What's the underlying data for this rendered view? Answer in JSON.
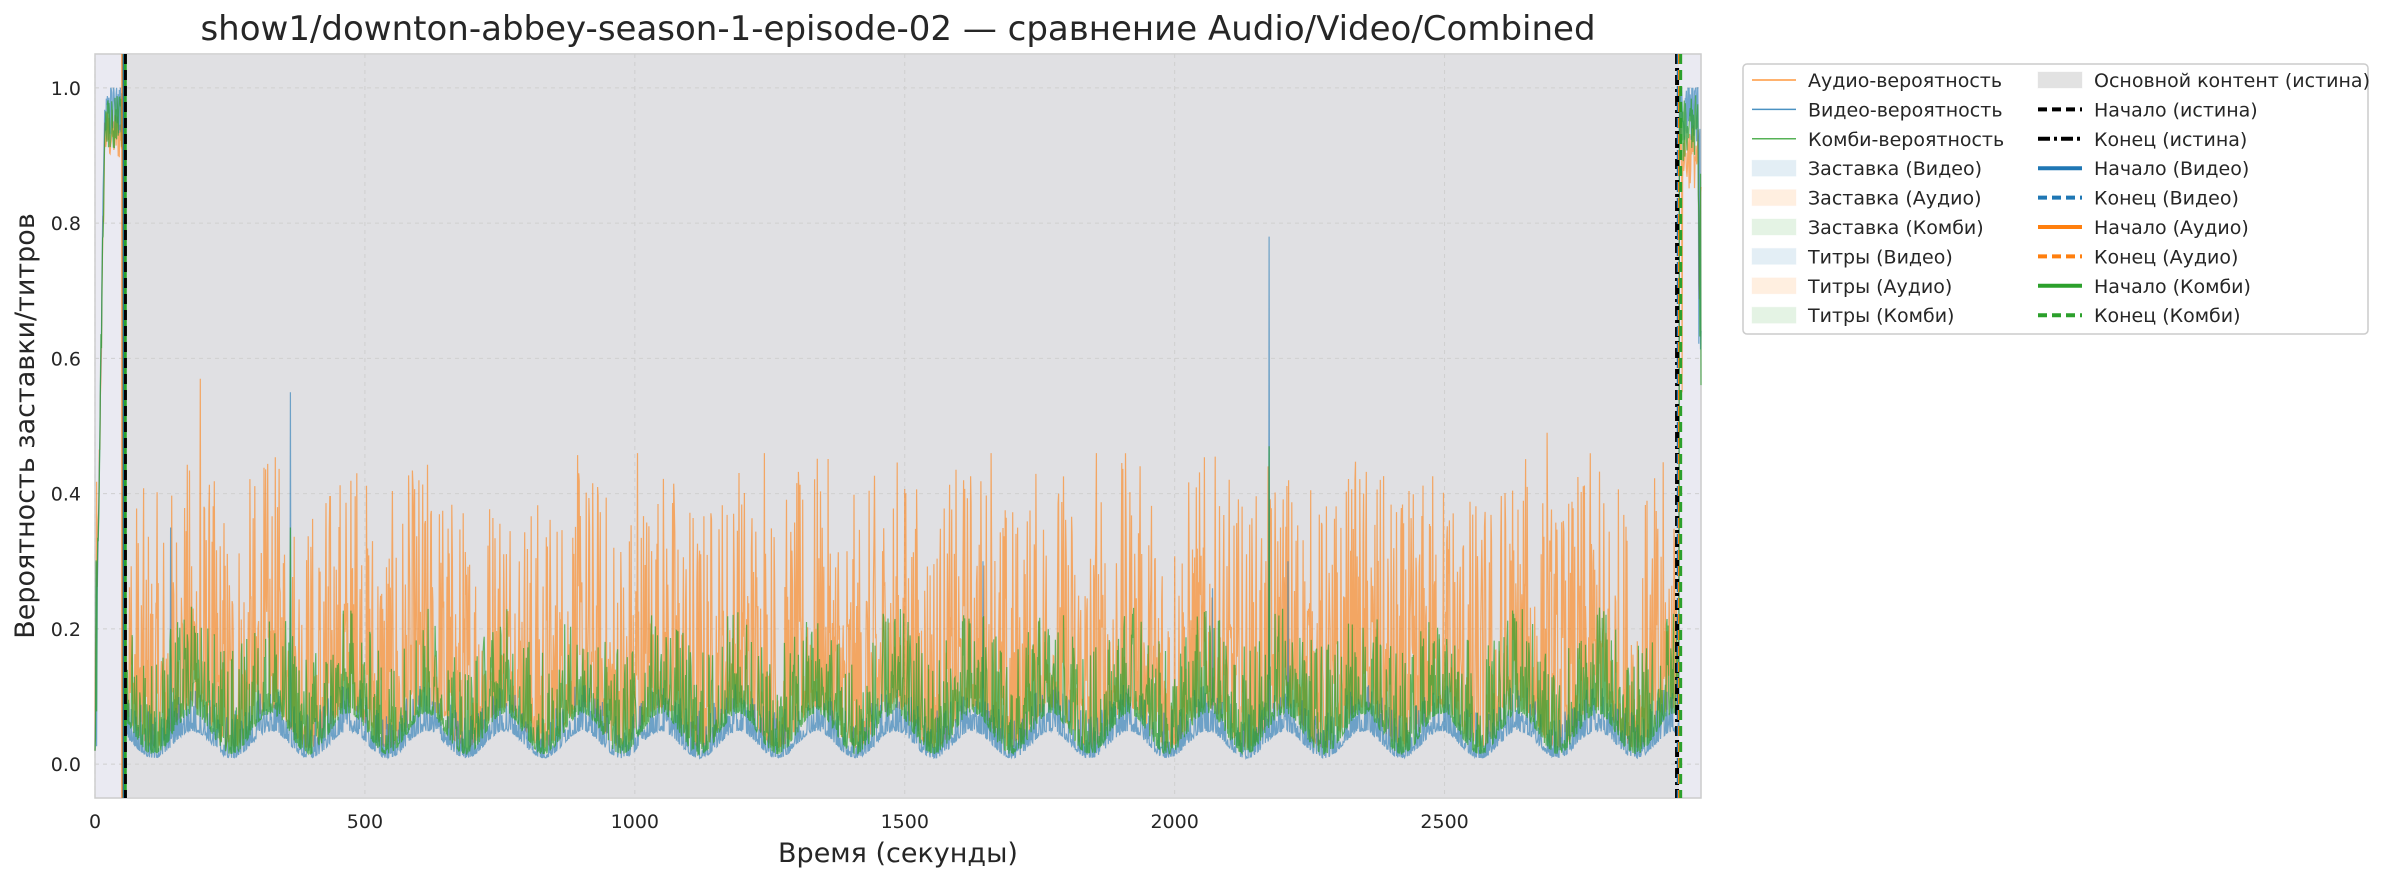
{
  "chart_data": {
    "type": "line",
    "title": "show1/downton-abbey-season-1-episode-02 — сравнение Audio/Video/Combined",
    "xlabel": "Время (секунды)",
    "ylabel": "Вероятность заставки/титров",
    "xlim": [
      0,
      2975
    ],
    "ylim": [
      -0.05,
      1.05
    ],
    "xticks": [
      0,
      500,
      1000,
      1500,
      2000,
      2500
    ],
    "yticks": [
      0.0,
      0.2,
      0.4,
      0.6,
      0.8,
      1.0
    ],
    "xtick_labels": [
      "0",
      "500",
      "1000",
      "1500",
      "2000",
      "2500"
    ],
    "ytick_labels": [
      "0.0",
      "0.2",
      "0.4",
      "0.6",
      "0.8",
      "1.0"
    ],
    "grid": true,
    "legend_placement": "outside-top-right",
    "legend": [
      "Аудио-вероятность",
      "Видео-вероятность",
      "Комби-вероятность",
      "Заставка (Видео)",
      "Заставка (Аудио)",
      "Заставка (Комби)",
      "Титры (Видео)",
      "Титры (Аудио)",
      "Титры (Комби)",
      "Основной контент (истина)",
      "Начало (истина)",
      "Конец (истина)",
      "Начало (Видео)",
      "Конец (Видео)",
      "Начало (Аудио)",
      "Конец (Аудио)",
      "Начало (Комби)",
      "Конец (Комби)"
    ],
    "colors": {
      "audio": "#ff7f0e",
      "video": "#1f77b4",
      "combined": "#2ca02c",
      "truth": "#000000",
      "main_content": "#d9d9d9",
      "plot_background": "#eaeaf2"
    },
    "main_content_truth_span": [
      53,
      2934
    ],
    "vertical_markers": {
      "truth_start": 53,
      "truth_end": 2934,
      "video_start": 55,
      "video_end": 2934,
      "audio_start": 55,
      "audio_end": 2934,
      "combined_start": 55,
      "combined_end": 2934
    },
    "notable_peaks": {
      "audio": [
        [
          195,
          0.57
        ],
        [
          485,
          0.43
        ],
        [
          1005,
          0.46
        ],
        [
          1240,
          0.46
        ],
        [
          1660,
          0.46
        ],
        [
          1855,
          0.46
        ],
        [
          2690,
          0.49
        ],
        [
          2940,
          0.55
        ]
      ],
      "video": [
        [
          140,
          0.35
        ],
        [
          362,
          0.55
        ],
        [
          1645,
          0.3
        ],
        [
          2070,
          0.26
        ],
        [
          2175,
          0.78
        ],
        [
          2210,
          0.3
        ]
      ],
      "combined": [
        [
          140,
          0.2
        ],
        [
          362,
          0.35
        ],
        [
          2175,
          0.47
        ]
      ]
    },
    "intro_region": {
      "x": [
        0,
        53
      ],
      "audio_level": 0.93,
      "video_level": 0.97,
      "combined_level": 0.95
    },
    "outro_region": {
      "x": [
        2934,
        2975
      ],
      "audio_level": 0.9,
      "video_level": 0.97,
      "combined_level": 0.94
    },
    "main_region_typical": {
      "audio_mean": 0.08,
      "video_mean": 0.03,
      "combined_mean": 0.05
    }
  }
}
